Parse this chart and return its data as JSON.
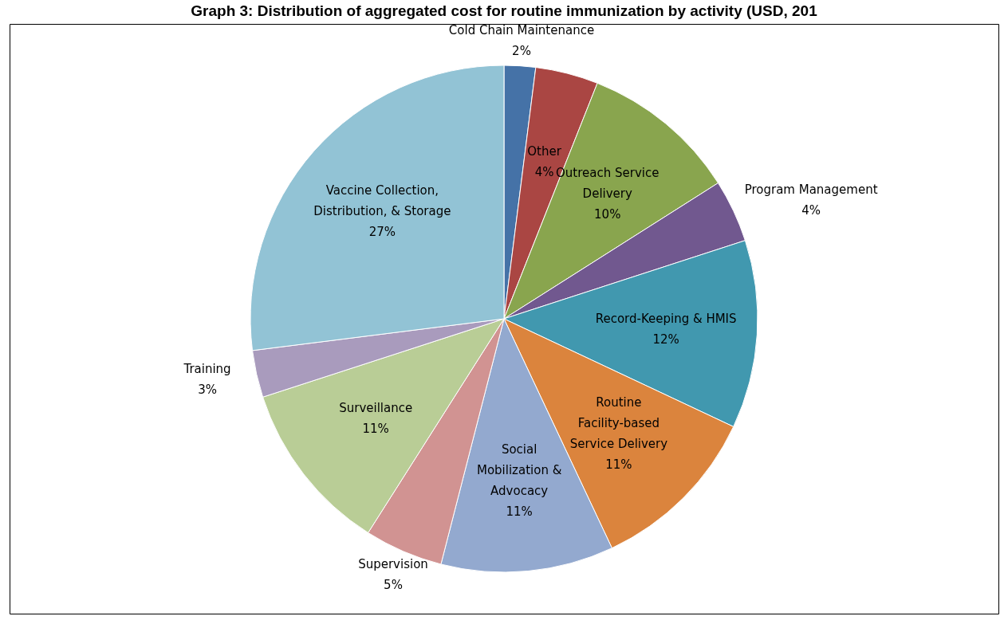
{
  "chart_data": {
    "type": "pie",
    "title": "Graph 3: Distribution of aggregated cost for routine immunization by activity (USD, 201",
    "categories": [
      "Cold Chain Maintenance",
      "Other",
      "Outreach Service Delivery",
      "Program Management",
      "Record-Keeping & HMIS",
      "Routine Facility-based Service Delivery",
      "Social Mobilization & Advocacy",
      "Supervision",
      "Surveillance",
      "Training",
      "Vaccine Collection, Distribution, & Storage"
    ],
    "values": [
      2,
      4,
      10,
      4,
      12,
      11,
      11,
      5,
      11,
      3,
      27
    ],
    "value_labels": [
      "2%",
      "4%",
      "10%",
      "4%",
      "12%",
      "11%",
      "11%",
      "5%",
      "11%",
      "3%",
      "27%"
    ],
    "colors": [
      "#4572a7",
      "#aa4643",
      "#89a54e",
      "#71588f",
      "#4198af",
      "#db843d",
      "#93a9cf",
      "#d19392",
      "#b9cd96",
      "#a99bbd",
      "#92c3d5"
    ],
    "legend": false
  }
}
